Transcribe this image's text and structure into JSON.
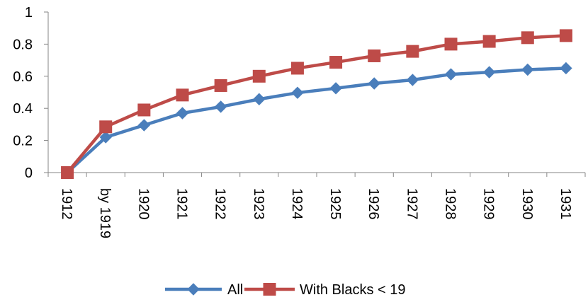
{
  "chart_data": {
    "type": "line",
    "categories": [
      "1912",
      "by 1919",
      "1920",
      "1921",
      "1922",
      "1923",
      "1924",
      "1925",
      "1926",
      "1927",
      "1928",
      "1929",
      "1930",
      "1931"
    ],
    "series": [
      {
        "name": "All",
        "color": "#4A7EBB",
        "marker": "diamond",
        "values": [
          0.0,
          0.22,
          0.295,
          0.37,
          0.41,
          0.457,
          0.497,
          0.525,
          0.555,
          0.577,
          0.612,
          0.625,
          0.641,
          0.65
        ]
      },
      {
        "name": "With Blacks < 19",
        "color": "#BE4B48",
        "marker": "square",
        "values": [
          0.0,
          0.285,
          0.39,
          0.483,
          0.542,
          0.6,
          0.65,
          0.687,
          0.727,
          0.755,
          0.8,
          0.817,
          0.84,
          0.853
        ]
      }
    ],
    "ylim": [
      0,
      1
    ],
    "yticks": [
      "0",
      "0.2",
      "0.4",
      "0.6",
      "0.8",
      "1"
    ],
    "ytick_values": [
      0,
      0.2,
      0.4,
      0.6,
      0.8,
      1
    ],
    "grid": false,
    "legend_position": "bottom"
  }
}
